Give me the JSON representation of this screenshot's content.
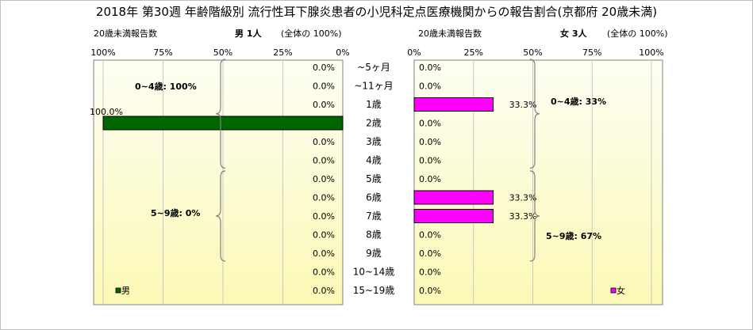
{
  "title": "2018年 第30週 年齢階級別 流行性耳下腺炎患者の小児科定点医療機関からの報告割合(京都府 20歳未満)",
  "headers": {
    "left_count_label": "20歳未満報告数",
    "left_sex_count": "男 1人",
    "left_total": "(全体の 100%)",
    "right_count_label": "20歳未満報告数",
    "right_sex_count": "女 3人",
    "right_total": "(全体の 100%)"
  },
  "colors": {
    "male": "#006600",
    "female": "#ff00ff",
    "grid": "#c8c8c8",
    "bg_top": "#fefef4",
    "bg_bottom": "#fbf9b5"
  },
  "chart_data": [
    {
      "type": "bar",
      "orientation": "horizontal",
      "direction": "right-to-left",
      "legend": "男",
      "legend_placement": "bottom-left",
      "categories": [
        "~5ヶ月",
        "~11ヶ月",
        "1歳",
        "2歳",
        "3歳",
        "4歳",
        "5歳",
        "6歳",
        "7歳",
        "8歳",
        "9歳",
        "10~14歳",
        "15~19歳"
      ],
      "values": [
        0,
        0,
        0,
        100,
        0,
        0,
        0,
        0,
        0,
        0,
        0,
        0,
        0
      ],
      "value_labels": [
        "0.0%",
        "0.0%",
        "0.0%",
        "100.0%",
        "0.0%",
        "0.0%",
        "0.0%",
        "0.0%",
        "0.0%",
        "0.0%",
        "0.0%",
        "0.0%",
        "0.0%"
      ],
      "xlim": [
        0,
        100
      ],
      "ticks": [
        "100%",
        "75%",
        "50%",
        "25%",
        "0%"
      ],
      "grid": true,
      "brace_labels": [
        "0~4歳: 100%",
        "5~9歳: 0%"
      ]
    },
    {
      "type": "bar",
      "orientation": "horizontal",
      "legend": "女",
      "legend_placement": "bottom-right",
      "categories": [
        "~5ヶ月",
        "~11ヶ月",
        "1歳",
        "2歳",
        "3歳",
        "4歳",
        "5歳",
        "6歳",
        "7歳",
        "8歳",
        "9歳",
        "10~14歳",
        "15~19歳"
      ],
      "values": [
        0,
        0,
        33.3,
        0,
        0,
        0,
        0,
        33.3,
        33.3,
        0,
        0,
        0,
        0
      ],
      "value_labels": [
        "0.0%",
        "0.0%",
        "33.3%",
        "0.0%",
        "0.0%",
        "0.0%",
        "0.0%",
        "33.3%",
        "33.3%",
        "0.0%",
        "0.0%",
        "0.0%",
        "0.0%"
      ],
      "xlim": [
        0,
        100
      ],
      "ticks": [
        "0%",
        "25%",
        "50%",
        "75%",
        "100%"
      ],
      "grid": true,
      "brace_labels": [
        "0~4歳: 33%",
        "5~9歳: 67%"
      ]
    }
  ]
}
